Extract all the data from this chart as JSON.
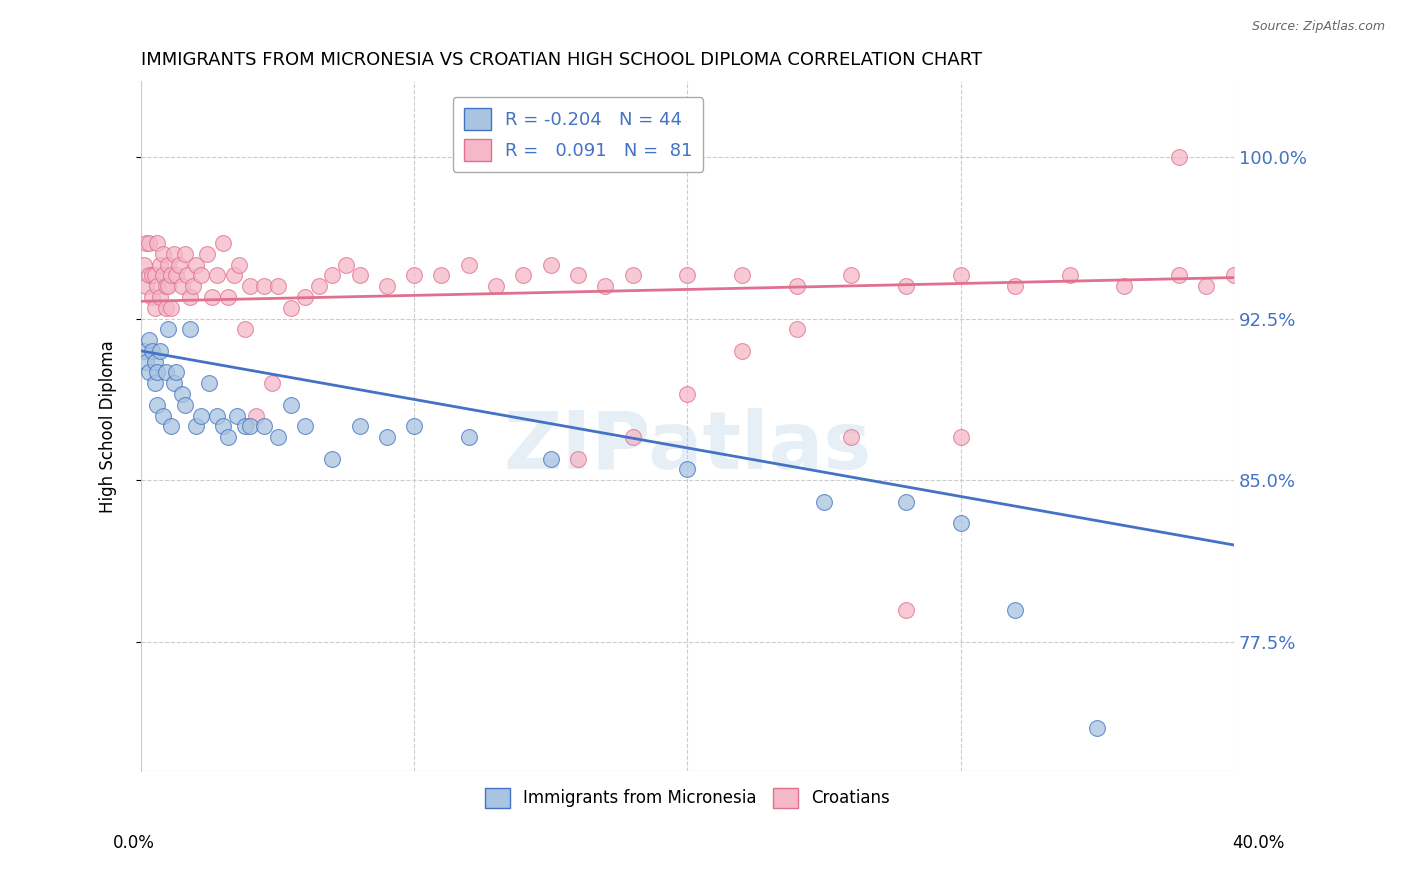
{
  "title": "IMMIGRANTS FROM MICRONESIA VS CROATIAN HIGH SCHOOL DIPLOMA CORRELATION CHART",
  "source": "Source: ZipAtlas.com",
  "ylabel": "High School Diploma",
  "yticks": [
    "77.5%",
    "85.0%",
    "92.5%",
    "100.0%"
  ],
  "ytick_vals": [
    0.775,
    0.85,
    0.925,
    1.0
  ],
  "xlim": [
    0.0,
    0.4
  ],
  "ylim": [
    0.715,
    1.035
  ],
  "legend_r_micro": "-0.204",
  "legend_n_micro": "44",
  "legend_r_croat": "0.091",
  "legend_n_croat": "81",
  "color_micro": "#a8c4e0",
  "color_croat": "#f4b8c8",
  "line_color_micro": "#4472c4",
  "line_color_croat": "#e07090",
  "watermark": "ZIPatlas",
  "micro_x": [
    0.001,
    0.002,
    0.003,
    0.003,
    0.004,
    0.005,
    0.005,
    0.006,
    0.006,
    0.007,
    0.008,
    0.009,
    0.01,
    0.011,
    0.012,
    0.013,
    0.015,
    0.016,
    0.018,
    0.02,
    0.022,
    0.025,
    0.028,
    0.03,
    0.032,
    0.035,
    0.038,
    0.04,
    0.045,
    0.05,
    0.055,
    0.06,
    0.07,
    0.08,
    0.09,
    0.1,
    0.12,
    0.15,
    0.2,
    0.25,
    0.28,
    0.3,
    0.32,
    0.35
  ],
  "micro_y": [
    0.91,
    0.905,
    0.915,
    0.9,
    0.91,
    0.905,
    0.895,
    0.9,
    0.885,
    0.91,
    0.88,
    0.9,
    0.92,
    0.875,
    0.895,
    0.9,
    0.89,
    0.885,
    0.92,
    0.875,
    0.88,
    0.895,
    0.88,
    0.875,
    0.87,
    0.88,
    0.875,
    0.875,
    0.875,
    0.87,
    0.885,
    0.875,
    0.86,
    0.875,
    0.87,
    0.875,
    0.87,
    0.86,
    0.855,
    0.84,
    0.84,
    0.83,
    0.79,
    0.735
  ],
  "croat_x": [
    0.001,
    0.002,
    0.002,
    0.003,
    0.003,
    0.004,
    0.004,
    0.005,
    0.005,
    0.006,
    0.006,
    0.007,
    0.007,
    0.008,
    0.008,
    0.009,
    0.009,
    0.01,
    0.01,
    0.011,
    0.011,
    0.012,
    0.013,
    0.014,
    0.015,
    0.016,
    0.017,
    0.018,
    0.019,
    0.02,
    0.022,
    0.024,
    0.026,
    0.028,
    0.03,
    0.032,
    0.034,
    0.036,
    0.038,
    0.04,
    0.042,
    0.045,
    0.048,
    0.05,
    0.055,
    0.06,
    0.065,
    0.07,
    0.075,
    0.08,
    0.09,
    0.1,
    0.11,
    0.12,
    0.13,
    0.14,
    0.15,
    0.16,
    0.17,
    0.18,
    0.2,
    0.22,
    0.24,
    0.26,
    0.28,
    0.3,
    0.32,
    0.34,
    0.36,
    0.38,
    0.39,
    0.4,
    0.16,
    0.18,
    0.2,
    0.22,
    0.24,
    0.26,
    0.28,
    0.3,
    0.38
  ],
  "croat_y": [
    0.95,
    0.94,
    0.96,
    0.945,
    0.96,
    0.945,
    0.935,
    0.945,
    0.93,
    0.94,
    0.96,
    0.95,
    0.935,
    0.945,
    0.955,
    0.94,
    0.93,
    0.95,
    0.94,
    0.945,
    0.93,
    0.955,
    0.945,
    0.95,
    0.94,
    0.955,
    0.945,
    0.935,
    0.94,
    0.95,
    0.945,
    0.955,
    0.935,
    0.945,
    0.96,
    0.935,
    0.945,
    0.95,
    0.92,
    0.94,
    0.88,
    0.94,
    0.895,
    0.94,
    0.93,
    0.935,
    0.94,
    0.945,
    0.95,
    0.945,
    0.94,
    0.945,
    0.945,
    0.95,
    0.94,
    0.945,
    0.95,
    0.945,
    0.94,
    0.945,
    0.945,
    0.945,
    0.94,
    0.945,
    0.94,
    0.945,
    0.94,
    0.945,
    0.94,
    0.945,
    0.94,
    0.945,
    0.86,
    0.87,
    0.89,
    0.91,
    0.92,
    0.87,
    0.79,
    0.87,
    1.0
  ],
  "micro_trend_x": [
    0.0,
    0.4
  ],
  "micro_trend_y": [
    0.91,
    0.82
  ],
  "croat_trend_x": [
    0.0,
    0.4
  ],
  "croat_trend_y": [
    0.933,
    0.944
  ]
}
